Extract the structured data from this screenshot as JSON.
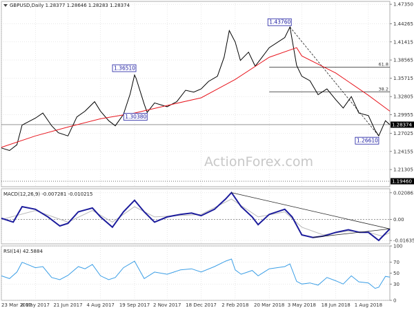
{
  "chart_data": [
    {
      "type": "candlestick",
      "header": "GBPUSD,Daily  1.28377 1.28646 1.28283 1.28374",
      "watermark": "ActionForex.com",
      "y_ticks": [
        "1.47350",
        "1.44265",
        "1.41415",
        "1.38565",
        "1.35715",
        "1.32805",
        "1.29955",
        "1.27025",
        "1.24155",
        "1.21305"
      ],
      "y_tick_values": [
        1.4735,
        1.44265,
        1.41415,
        1.38565,
        1.35715,
        1.32805,
        1.29955,
        1.27025,
        1.24155,
        1.21305
      ],
      "ylim": [
        1.186,
        1.478
      ],
      "current_price": {
        "label": "1.28374",
        "value": 1.28374
      },
      "support_line": {
        "label": "1.19460",
        "value": 1.1946
      },
      "x_ticks": [
        "23 Mar 2017",
        "8 May 2017",
        "21 Jun 2017",
        "4 Aug 2017",
        "19 Sep 2017",
        "2 Nov 2017",
        "18 Dec 2017",
        "2 Feb 2018",
        "20 Mar 2018",
        "3 May 2018",
        "18 Jun 2018",
        "1 Aug 2018"
      ],
      "price_path": [
        [
          "23 Mar 2017",
          1.247
        ],
        [
          "3 Apr 2017",
          1.243
        ],
        [
          "13 Apr 2017",
          1.252
        ],
        [
          "20 Apr 2017",
          1.283
        ],
        [
          "8 May 2017",
          1.294
        ],
        [
          "18 May 2017",
          1.302
        ],
        [
          "30 May 2017",
          1.282
        ],
        [
          "8 Jun 2017",
          1.271
        ],
        [
          "21 Jun 2017",
          1.266
        ],
        [
          "3 Jul 2017",
          1.296
        ],
        [
          "14 Jul 2017",
          1.305
        ],
        [
          "27 Jul 2017",
          1.32
        ],
        [
          "4 Aug 2017",
          1.305
        ],
        [
          "15 Aug 2017",
          1.29
        ],
        [
          "24 Aug 2017",
          1.282
        ],
        [
          "4 Sep 2017",
          1.3
        ],
        [
          "13 Sep 2017",
          1.332
        ],
        [
          "19 Sep 2017",
          1.362
        ],
        [
          "21 Sep 2017",
          1.357
        ],
        [
          "2 Oct 2017",
          1.316
        ],
        [
          "6 Oct 2017",
          1.303
        ],
        [
          "16 Oct 2017",
          1.318
        ],
        [
          "2 Nov 2017",
          1.312
        ],
        [
          "15 Nov 2017",
          1.32
        ],
        [
          "27 Nov 2017",
          1.338
        ],
        [
          "8 Dec 2017",
          1.335
        ],
        [
          "18 Dec 2017",
          1.34
        ],
        [
          "28 Dec 2017",
          1.352
        ],
        [
          "9 Jan 2018",
          1.36
        ],
        [
          "18 Jan 2018",
          1.39
        ],
        [
          "25 Jan 2018",
          1.432
        ],
        [
          "2 Feb 2018",
          1.414
        ],
        [
          "9 Feb 2018",
          1.385
        ],
        [
          "20 Feb 2018",
          1.398
        ],
        [
          "1 Mar 2018",
          1.376
        ],
        [
          "9 Mar 2018",
          1.388
        ],
        [
          "20 Mar 2018",
          1.405
        ],
        [
          "10 Apr 2018",
          1.421
        ],
        [
          "17 Apr 2018",
          1.4376
        ],
        [
          "26 Apr 2018",
          1.377
        ],
        [
          "3 May 2018",
          1.36
        ],
        [
          "14 May 2018",
          1.353
        ],
        [
          "25 May 2018",
          1.331
        ],
        [
          "6 Jun 2018",
          1.34
        ],
        [
          "18 Jun 2018",
          1.323
        ],
        [
          "28 Jun 2018",
          1.31
        ],
        [
          "9 Jul 2018",
          1.328
        ],
        [
          "19 Jul 2018",
          1.302
        ],
        [
          "1 Aug 2018",
          1.298
        ],
        [
          "10 Aug 2018",
          1.275
        ],
        [
          "15 Aug 2018",
          1.2661
        ],
        [
          "24 Aug 2018",
          1.29
        ],
        [
          "30 Aug 2018",
          1.2837
        ]
      ],
      "moving_average": [
        [
          "23 Mar 2017",
          1.248
        ],
        [
          "8 May 2017",
          1.266
        ],
        [
          "21 Jun 2017",
          1.28
        ],
        [
          "4 Aug 2017",
          1.293
        ],
        [
          "19 Sep 2017",
          1.302
        ],
        [
          "2 Nov 2017",
          1.314
        ],
        [
          "18 Dec 2017",
          1.326
        ],
        [
          "2 Feb 2018",
          1.355
        ],
        [
          "20 Mar 2018",
          1.39
        ],
        [
          "26 Apr 2018",
          1.405
        ],
        [
          "3 May 2018",
          1.392
        ],
        [
          "18 Jun 2018",
          1.365
        ],
        [
          "1 Aug 2018",
          1.33
        ],
        [
          "30 Aug 2018",
          1.305
        ]
      ],
      "annotations": [
        {
          "label": "1.43760",
          "date": "17 Apr 2018",
          "value": 1.4376
        },
        {
          "label": "1.36510",
          "date": "19 Sep 2017",
          "value": 1.3651
        },
        {
          "label": "1.30380",
          "date": "6 Oct 2017",
          "value": 1.3038
        },
        {
          "label": "1.26610",
          "date": "15 Aug 2018",
          "value": 1.2661
        }
      ],
      "fib_levels": [
        {
          "label": "61.8",
          "value": 1.3745,
          "start": "20 Mar 2018",
          "end": "30 Aug 2018"
        },
        {
          "label": "38.2",
          "value": 1.3355,
          "start": "20 Mar 2018",
          "end": "30 Aug 2018"
        }
      ],
      "trendlines": [
        {
          "from": [
            "17 Apr 2018",
            1.4376
          ],
          "to": [
            "15 Aug 2018",
            1.2661
          ],
          "style": "dashed"
        }
      ]
    },
    {
      "type": "line",
      "header": "MACD(12,26,9) -0.007281 -0.010215",
      "y_ticks": [
        "0.020861",
        "0.00",
        "-0.016357"
      ],
      "y_tick_values": [
        0.020861,
        0.0,
        -0.016357
      ],
      "ylim": [
        -0.019,
        0.024
      ],
      "zero_line": 0.0,
      "macd": [
        [
          "23 Mar 2017",
          0.001
        ],
        [
          "8 Apr 2017",
          -0.002
        ],
        [
          "20 Apr 2017",
          0.01
        ],
        [
          "8 May 2017",
          0.008
        ],
        [
          "25 May 2017",
          0.002
        ],
        [
          "10 Jun 2017",
          -0.005
        ],
        [
          "21 Jun 2017",
          -0.003
        ],
        [
          "5 Jul 2017",
          0.006
        ],
        [
          "24 Jul 2017",
          0.009
        ],
        [
          "4 Aug 2017",
          0.002
        ],
        [
          "20 Aug 2017",
          -0.006
        ],
        [
          "4 Sep 2017",
          0.006
        ],
        [
          "19 Sep 2017",
          0.015
        ],
        [
          "2 Oct 2017",
          0.006
        ],
        [
          "16 Oct 2017",
          -0.002
        ],
        [
          "2 Nov 2017",
          0.002
        ],
        [
          "20 Nov 2017",
          0.004
        ],
        [
          "5 Dec 2017",
          0.005
        ],
        [
          "18 Dec 2017",
          0.003
        ],
        [
          "5 Jan 2018",
          0.008
        ],
        [
          "20 Jan 2018",
          0.016
        ],
        [
          "28 Jan 2018",
          0.021
        ],
        [
          "10 Feb 2018",
          0.01
        ],
        [
          "25 Feb 2018",
          0.002
        ],
        [
          "5 Mar 2018",
          -0.004
        ],
        [
          "20 Mar 2018",
          0.004
        ],
        [
          "10 Apr 2018",
          0.008
        ],
        [
          "20 Apr 2018",
          0.002
        ],
        [
          "3 May 2018",
          -0.012
        ],
        [
          "18 May 2018",
          -0.014
        ],
        [
          "1 Jun 2018",
          -0.013
        ],
        [
          "18 Jun 2018",
          -0.01
        ],
        [
          "5 Jul 2018",
          -0.008
        ],
        [
          "20 Jul 2018",
          -0.01
        ],
        [
          "1 Aug 2018",
          -0.01
        ],
        [
          "15 Aug 2018",
          -0.0163
        ],
        [
          "30 Aug 2018",
          -0.0073
        ]
      ],
      "signal": [
        [
          "23 Mar 2017",
          0.0
        ],
        [
          "8 May 2017",
          0.007
        ],
        [
          "21 Jun 2017",
          -0.002
        ],
        [
          "24 Jul 2017",
          0.007
        ],
        [
          "20 Aug 2017",
          -0.002
        ],
        [
          "19 Sep 2017",
          0.01
        ],
        [
          "16 Oct 2017",
          0.002
        ],
        [
          "18 Dec 2017",
          0.004
        ],
        [
          "28 Jan 2018",
          0.016
        ],
        [
          "5 Mar 2018",
          0.002
        ],
        [
          "10 Apr 2018",
          0.006
        ],
        [
          "3 May 2018",
          -0.006
        ],
        [
          "1 Jun 2018",
          -0.012
        ],
        [
          "5 Jul 2018",
          -0.009
        ],
        [
          "1 Aug 2018",
          -0.01
        ],
        [
          "20 Aug 2018",
          -0.013
        ],
        [
          "30 Aug 2018",
          -0.0102
        ]
      ]
    },
    {
      "type": "line",
      "header": "RSI(14) 42.5884",
      "y_ticks": [
        "100",
        "70",
        "50",
        "30",
        "0"
      ],
      "y_tick_values": [
        100,
        70,
        50,
        30,
        0
      ],
      "ylim": [
        0,
        100
      ],
      "rsi": [
        [
          "23 Mar 2017",
          45
        ],
        [
          "3 Apr 2017",
          40
        ],
        [
          "13 Apr 2017",
          52
        ],
        [
          "20 Apr 2017",
          70
        ],
        [
          "8 May 2017",
          60
        ],
        [
          "18 May 2017",
          62
        ],
        [
          "30 May 2017",
          42
        ],
        [
          "10 Jun 2017",
          38
        ],
        [
          "21 Jun 2017",
          46
        ],
        [
          "5 Jul 2017",
          62
        ],
        [
          "14 Jul 2017",
          58
        ],
        [
          "24 Jul 2017",
          66
        ],
        [
          "4 Aug 2017",
          45
        ],
        [
          "15 Aug 2017",
          38
        ],
        [
          "24 Aug 2017",
          42
        ],
        [
          "4 Sep 2017",
          60
        ],
        [
          "19 Sep 2017",
          72
        ],
        [
          "2 Oct 2017",
          40
        ],
        [
          "16 Oct 2017",
          52
        ],
        [
          "2 Nov 2017",
          48
        ],
        [
          "20 Nov 2017",
          56
        ],
        [
          "5 Dec 2017",
          58
        ],
        [
          "18 Dec 2017",
          52
        ],
        [
          "5 Jan 2018",
          62
        ],
        [
          "20 Jan 2018",
          72
        ],
        [
          "28 Jan 2018",
          76
        ],
        [
          "2 Feb 2018",
          56
        ],
        [
          "10 Feb 2018",
          48
        ],
        [
          "25 Feb 2018",
          55
        ],
        [
          "5 Mar 2018",
          45
        ],
        [
          "20 Mar 2018",
          58
        ],
        [
          "10 Apr 2018",
          62
        ],
        [
          "17 Apr 2018",
          67
        ],
        [
          "26 Apr 2018",
          35
        ],
        [
          "3 May 2018",
          30
        ],
        [
          "14 May 2018",
          32
        ],
        [
          "25 May 2018",
          28
        ],
        [
          "6 Jun 2018",
          42
        ],
        [
          "18 Jun 2018",
          36
        ],
        [
          "28 Jun 2018",
          30
        ],
        [
          "9 Jul 2018",
          45
        ],
        [
          "19 Jul 2018",
          34
        ],
        [
          "1 Aug 2018",
          32
        ],
        [
          "10 Aug 2018",
          22
        ],
        [
          "15 Aug 2018",
          24
        ],
        [
          "24 Aug 2018",
          44
        ],
        [
          "30 Aug 2018",
          42.6
        ]
      ]
    }
  ],
  "colors": {
    "price": "#000000",
    "moving_average": "#e8141c",
    "macd": "#1c1c9c",
    "signal": "#b8b8b8",
    "rsi": "#3a9ee6",
    "annotation_border": "#1a1aa0",
    "grid": "#d8d8d8"
  }
}
